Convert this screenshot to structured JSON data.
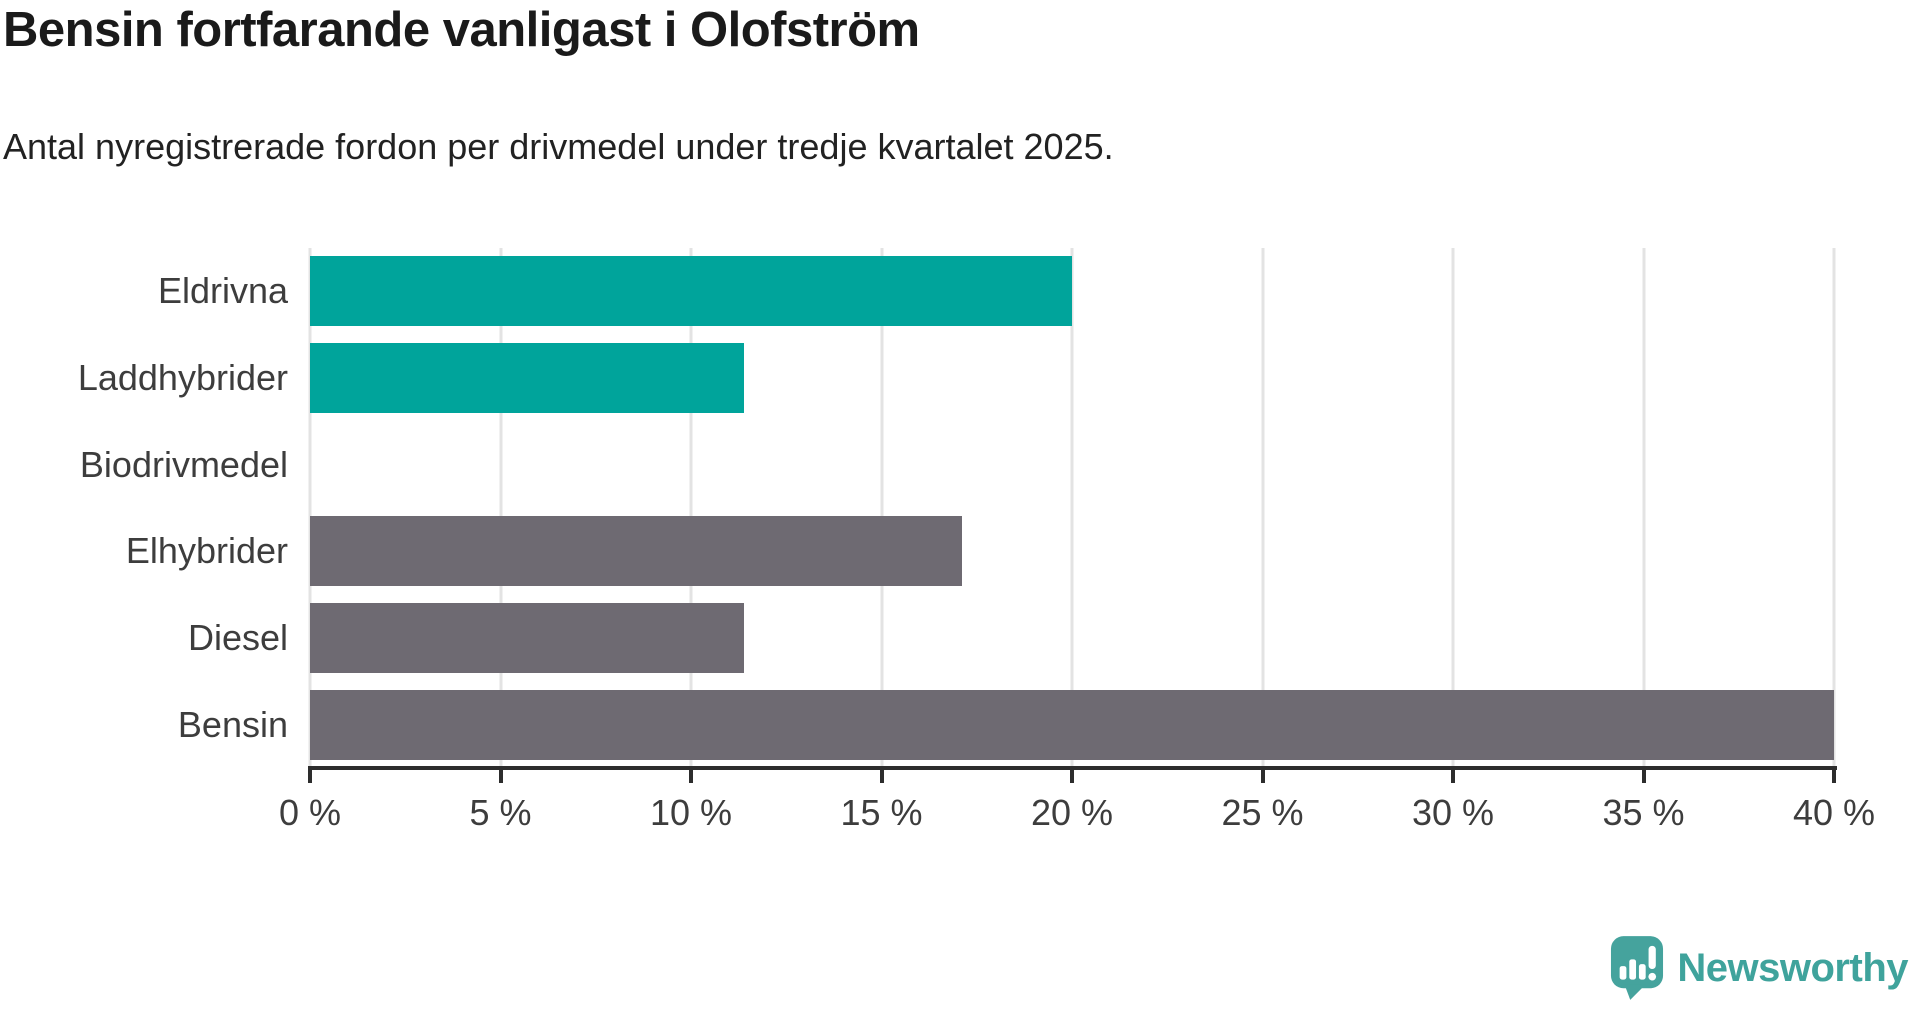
{
  "header": {
    "title": "Bensin fortfarande vanligast i Olofström",
    "subtitle": "Antal nyregistrerade fordon per drivmedel under tredje kvartalet 2025."
  },
  "chart_data": {
    "type": "bar",
    "orientation": "horizontal",
    "title": "Bensin fortfarande vanligast i Olofström",
    "subtitle": "Antal nyregistrerade fordon per drivmedel under tredje kvartalet 2025.",
    "categories": [
      "Eldrivna",
      "Laddhybrider",
      "Biodrivmedel",
      "Elhybrider",
      "Diesel",
      "Bensin"
    ],
    "values": [
      20,
      11.4,
      0,
      17.1,
      11.4,
      40
    ],
    "unit": "%",
    "bar_colors": [
      "#00a49b",
      "#00a49b",
      "#00a49b",
      "#6e6a72",
      "#6e6a72",
      "#6e6a72"
    ],
    "xlim": [
      0,
      40
    ],
    "x_ticks": [
      {
        "value": 0,
        "label": "0 %"
      },
      {
        "value": 5,
        "label": "5 %"
      },
      {
        "value": 10,
        "label": "10 %"
      },
      {
        "value": 15,
        "label": "15 %"
      },
      {
        "value": 20,
        "label": "20 %"
      },
      {
        "value": 25,
        "label": "25 %"
      },
      {
        "value": 30,
        "label": "30 %"
      },
      {
        "value": 35,
        "label": "35 %"
      },
      {
        "value": 40,
        "label": "40 %"
      }
    ],
    "grid": true,
    "legend": "none"
  },
  "branding": {
    "name": "Newsworthy",
    "icon": "newsworthy-logo-icon",
    "color": "#3fa39c"
  },
  "colors": {
    "highlight_bar": "#00a49b",
    "neutral_bar": "#6e6a72",
    "axis_line": "#2d2d2d",
    "gridline": "#e3e3e3",
    "title_text": "#1a1a1a",
    "label_text": "#3d3d3d"
  }
}
